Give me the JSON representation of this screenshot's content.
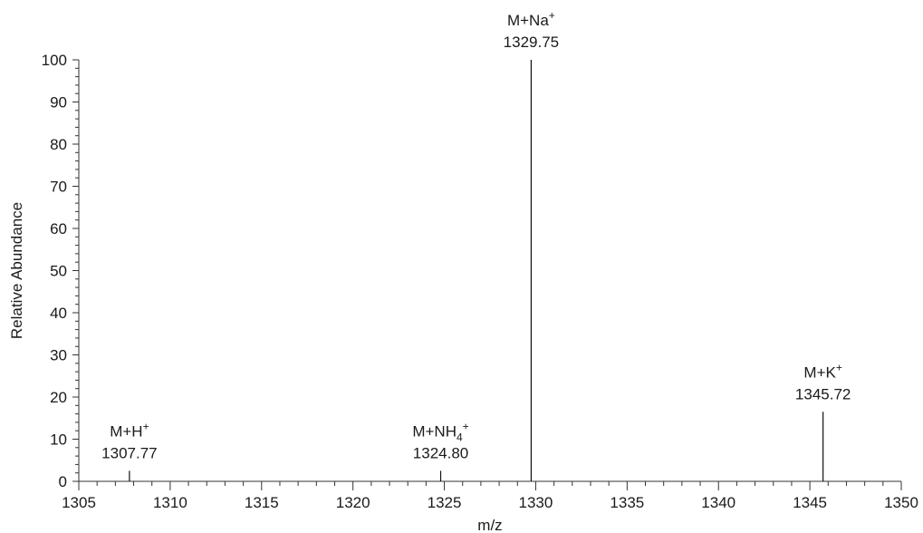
{
  "chart_data": {
    "type": "bar",
    "xlabel": "m/z",
    "ylabel": "Relative Abundance",
    "xlim": [
      1305,
      1350
    ],
    "ylim": [
      0,
      100
    ],
    "xticks": [
      "1305",
      "1310",
      "1315",
      "1320",
      "1325",
      "1330",
      "1335",
      "1340",
      "1345",
      "1350"
    ],
    "yticks": [
      "0",
      "10",
      "20",
      "30",
      "40",
      "50",
      "60",
      "70",
      "80",
      "90",
      "100"
    ],
    "peaks": [
      {
        "mz": 1307.77,
        "abundance": 2.5,
        "ion": "M+H",
        "charge": "+",
        "mz_label": "1307.77"
      },
      {
        "mz": 1324.8,
        "abundance": 2.5,
        "ion": "M+NH",
        "ion_sub": "4",
        "charge": "+",
        "mz_label": "1324.80"
      },
      {
        "mz": 1329.75,
        "abundance": 100,
        "ion": "M+Na",
        "charge": "+",
        "mz_label": "1329.75"
      },
      {
        "mz": 1345.72,
        "abundance": 16.5,
        "ion": "M+K",
        "charge": "+",
        "mz_label": "1345.72"
      }
    ]
  }
}
